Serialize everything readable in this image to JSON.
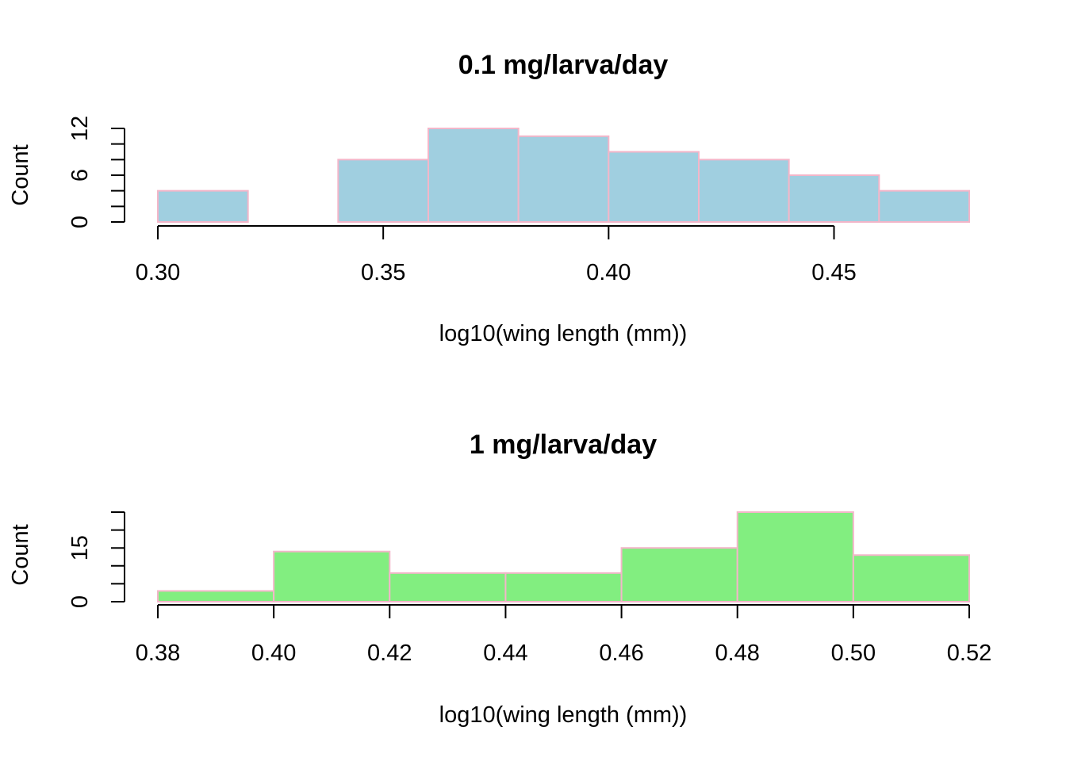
{
  "chart_data": [
    {
      "type": "bar",
      "title": "0.1 mg/larva/day",
      "xlabel": "log10(wing length (mm))",
      "ylabel": "Count",
      "bin_edges": [
        0.3,
        0.32,
        0.34,
        0.36,
        0.38,
        0.4,
        0.42,
        0.44,
        0.46,
        0.48
      ],
      "values": [
        4,
        0,
        8,
        12,
        11,
        9,
        8,
        6,
        4
      ],
      "xlim": [
        0.3,
        0.48
      ],
      "ylim": [
        0,
        12
      ],
      "x_ticks": [
        0.3,
        0.35,
        0.4,
        0.45
      ],
      "x_tick_labels": [
        "0.30",
        "0.35",
        "0.40",
        "0.45"
      ],
      "y_minor_ticks": [
        0,
        2,
        4,
        6,
        8,
        10,
        12
      ],
      "y_ticks": [
        0,
        6,
        12
      ],
      "y_tick_labels": [
        "0",
        "6",
        "12"
      ],
      "bar_color": "#a0cfe0",
      "edge_color": "#f3b6c9",
      "grid": false,
      "legend": "none"
    },
    {
      "type": "bar",
      "title": "1 mg/larva/day",
      "xlabel": "log10(wing length (mm))",
      "ylabel": "Count",
      "bin_edges": [
        0.38,
        0.4,
        0.42,
        0.44,
        0.46,
        0.48,
        0.5,
        0.52
      ],
      "values": [
        3,
        14,
        8,
        8,
        15,
        25,
        13
      ],
      "xlim": [
        0.38,
        0.52
      ],
      "ylim": [
        0,
        25
      ],
      "x_ticks": [
        0.38,
        0.4,
        0.42,
        0.44,
        0.46,
        0.48,
        0.5,
        0.52
      ],
      "x_tick_labels": [
        "0.38",
        "0.40",
        "0.42",
        "0.44",
        "0.46",
        "0.48",
        "0.50",
        "0.52"
      ],
      "y_minor_ticks": [
        0,
        5,
        10,
        15,
        20,
        25
      ],
      "y_ticks": [
        0,
        15
      ],
      "y_tick_labels": [
        "0",
        "15"
      ],
      "bar_color": "#82ee80",
      "edge_color": "#f3b6c9",
      "grid": false,
      "legend": "none"
    }
  ]
}
